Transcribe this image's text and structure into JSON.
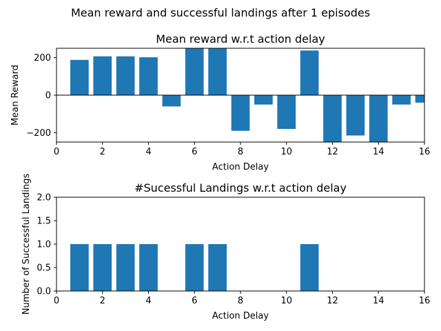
{
  "suptitle": "Mean reward and successful landings after 1 episodes",
  "chart_data": [
    {
      "type": "bar",
      "title": "Mean reward w.r.t action delay",
      "xlabel": "Action Delay",
      "ylabel": "Mean Reward",
      "x": [
        1,
        2,
        3,
        4,
        5,
        6,
        7,
        8,
        9,
        10,
        11,
        12,
        13,
        14,
        15,
        16
      ],
      "values": [
        188,
        207,
        207,
        202,
        -60,
        260,
        260,
        -190,
        -50,
        -180,
        238,
        -260,
        -215,
        -260,
        -50,
        -40
      ],
      "xlim": [
        0,
        16
      ],
      "ylim": [
        -250,
        250
      ],
      "xticks": [
        0,
        2,
        4,
        6,
        8,
        10,
        12,
        14,
        16
      ],
      "yticks": [
        -200,
        0,
        200
      ],
      "zero_line": true,
      "grid": false
    },
    {
      "type": "bar",
      "title": "#Sucessful Landings w.r.t action delay",
      "xlabel": "Action Delay",
      "ylabel": "Number of Successful Landings",
      "x": [
        1,
        2,
        3,
        4,
        5,
        6,
        7,
        8,
        9,
        10,
        11,
        12,
        13,
        14,
        15,
        16
      ],
      "values": [
        1,
        1,
        1,
        1,
        0,
        1,
        1,
        0,
        0,
        0,
        1,
        0,
        0,
        0,
        0,
        0
      ],
      "xlim": [
        0,
        16
      ],
      "ylim": [
        0,
        2
      ],
      "xticks": [
        0,
        2,
        4,
        6,
        8,
        10,
        12,
        14,
        16
      ],
      "yticks": [
        0.0,
        0.5,
        1.0,
        1.5,
        2.0
      ],
      "ytick_labels": [
        "0.0",
        "0.5",
        "1.0",
        "1.5",
        "2.0"
      ],
      "grid": false
    }
  ],
  "colors": {
    "bar": "#1f77b4"
  }
}
